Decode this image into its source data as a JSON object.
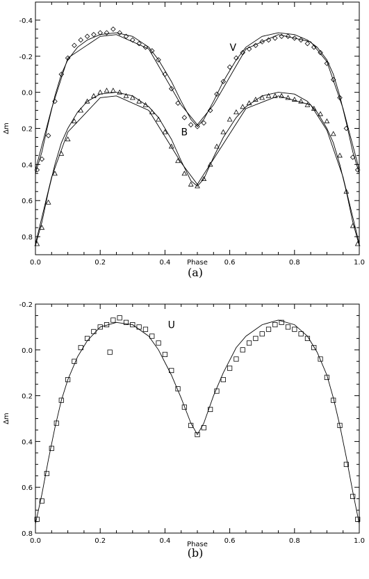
{
  "chart_data": [
    {
      "type": "scatter",
      "panel_label": "(a)",
      "xlabel": "Phase",
      "ylabel": "Δm",
      "xlim": [
        0.0,
        1.0
      ],
      "ylim": [
        0.9,
        -0.5
      ],
      "y_inverted": true,
      "xticks": [
        "0.0",
        "0.2",
        "0.4",
        "0.6",
        "0.8",
        "1.0"
      ],
      "yticks": [
        "-0.4",
        "-0.2",
        "0.0",
        "0.2",
        "0.4",
        "0.6",
        "0.8"
      ],
      "grid": false,
      "series_labels": [
        {
          "text": "V",
          "x": 0.61,
          "y": -0.25
        },
        {
          "text": "B",
          "x": 0.46,
          "y": 0.22
        }
      ],
      "series": [
        {
          "name": "V",
          "marker": "diamond",
          "x": [
            0.005,
            0.02,
            0.04,
            0.06,
            0.08,
            0.1,
            0.12,
            0.14,
            0.16,
            0.18,
            0.2,
            0.22,
            0.24,
            0.26,
            0.28,
            0.3,
            0.32,
            0.34,
            0.36,
            0.38,
            0.4,
            0.42,
            0.44,
            0.46,
            0.48,
            0.5,
            0.52,
            0.54,
            0.56,
            0.58,
            0.6,
            0.62,
            0.64,
            0.66,
            0.68,
            0.7,
            0.72,
            0.74,
            0.76,
            0.78,
            0.8,
            0.82,
            0.84,
            0.86,
            0.88,
            0.9,
            0.92,
            0.94,
            0.96,
            0.98,
            0.995
          ],
          "y": [
            0.43,
            0.37,
            0.24,
            0.05,
            -0.1,
            -0.19,
            -0.26,
            -0.29,
            -0.31,
            -0.32,
            -0.33,
            -0.33,
            -0.35,
            -0.33,
            -0.31,
            -0.29,
            -0.27,
            -0.25,
            -0.23,
            -0.18,
            -0.1,
            -0.02,
            0.06,
            0.14,
            0.18,
            0.19,
            0.17,
            0.1,
            0.01,
            -0.06,
            -0.14,
            -0.19,
            -0.22,
            -0.24,
            -0.26,
            -0.28,
            -0.29,
            -0.3,
            -0.31,
            -0.31,
            -0.3,
            -0.29,
            -0.27,
            -0.25,
            -0.22,
            -0.16,
            -0.07,
            0.03,
            0.2,
            0.36,
            0.43
          ],
          "model_x": [
            0.0,
            0.02,
            0.04,
            0.06,
            0.08,
            0.1,
            0.13,
            0.16,
            0.2,
            0.25,
            0.3,
            0.35,
            0.38,
            0.42,
            0.45,
            0.48,
            0.5,
            0.52,
            0.55,
            0.58,
            0.62,
            0.65,
            0.7,
            0.75,
            0.8,
            0.84,
            0.87,
            0.9,
            0.92,
            0.94,
            0.96,
            0.98,
            1.0
          ],
          "model_y": [
            0.45,
            0.33,
            0.17,
            0.02,
            -0.1,
            -0.18,
            -0.25,
            -0.29,
            -0.32,
            -0.33,
            -0.31,
            -0.25,
            -0.18,
            -0.06,
            0.05,
            0.15,
            0.19,
            0.15,
            0.05,
            -0.06,
            -0.18,
            -0.25,
            -0.31,
            -0.33,
            -0.32,
            -0.29,
            -0.25,
            -0.18,
            -0.1,
            0.02,
            0.17,
            0.33,
            0.45
          ],
          "model2_x": [
            0.0,
            0.05,
            0.1,
            0.2,
            0.25,
            0.35,
            0.45,
            0.5,
            0.55,
            0.65,
            0.75,
            0.85,
            0.9,
            0.95,
            1.0
          ],
          "model2_y": [
            0.43,
            0.09,
            -0.19,
            -0.31,
            -0.32,
            -0.24,
            0.07,
            0.18,
            0.07,
            -0.24,
            -0.32,
            -0.28,
            -0.17,
            0.09,
            0.43
          ]
        },
        {
          "name": "B",
          "marker": "triangle",
          "x": [
            0.005,
            0.02,
            0.04,
            0.06,
            0.08,
            0.1,
            0.12,
            0.14,
            0.16,
            0.18,
            0.2,
            0.22,
            0.24,
            0.26,
            0.28,
            0.3,
            0.32,
            0.34,
            0.36,
            0.38,
            0.4,
            0.42,
            0.44,
            0.46,
            0.48,
            0.5,
            0.52,
            0.54,
            0.56,
            0.58,
            0.6,
            0.62,
            0.64,
            0.66,
            0.68,
            0.7,
            0.72,
            0.74,
            0.76,
            0.78,
            0.8,
            0.82,
            0.84,
            0.86,
            0.88,
            0.9,
            0.92,
            0.94,
            0.96,
            0.98,
            0.995
          ],
          "y": [
            0.84,
            0.75,
            0.61,
            0.45,
            0.34,
            0.26,
            0.16,
            0.1,
            0.05,
            0.02,
            0.0,
            -0.01,
            -0.01,
            0.0,
            0.02,
            0.03,
            0.05,
            0.07,
            0.11,
            0.15,
            0.22,
            0.3,
            0.38,
            0.45,
            0.51,
            0.52,
            0.48,
            0.4,
            0.3,
            0.22,
            0.15,
            0.11,
            0.08,
            0.06,
            0.04,
            0.03,
            0.02,
            0.02,
            0.02,
            0.03,
            0.04,
            0.05,
            0.07,
            0.09,
            0.12,
            0.16,
            0.23,
            0.35,
            0.55,
            0.74,
            0.84
          ],
          "model_x": [
            0.0,
            0.02,
            0.04,
            0.06,
            0.08,
            0.1,
            0.13,
            0.16,
            0.2,
            0.25,
            0.3,
            0.35,
            0.38,
            0.42,
            0.45,
            0.48,
            0.5,
            0.52,
            0.55,
            0.58,
            0.62,
            0.65,
            0.7,
            0.75,
            0.8,
            0.84,
            0.87,
            0.9,
            0.92,
            0.94,
            0.96,
            0.98,
            1.0
          ],
          "model_y": [
            0.85,
            0.72,
            0.55,
            0.4,
            0.28,
            0.2,
            0.11,
            0.05,
            0.01,
            0.0,
            0.02,
            0.08,
            0.14,
            0.26,
            0.38,
            0.49,
            0.52,
            0.48,
            0.36,
            0.25,
            0.14,
            0.08,
            0.02,
            0.0,
            0.01,
            0.05,
            0.11,
            0.2,
            0.28,
            0.4,
            0.55,
            0.72,
            0.85
          ],
          "model2_x": [
            0.0,
            0.05,
            0.1,
            0.2,
            0.25,
            0.35,
            0.45,
            0.5,
            0.55,
            0.65,
            0.75,
            0.85,
            0.9,
            0.95,
            1.0
          ],
          "model2_y": [
            0.84,
            0.47,
            0.22,
            0.03,
            0.02,
            0.1,
            0.39,
            0.51,
            0.37,
            0.09,
            0.02,
            0.07,
            0.21,
            0.47,
            0.84
          ]
        }
      ]
    },
    {
      "type": "scatter",
      "panel_label": "(b)",
      "xlabel": "Phase",
      "ylabel": "Δm",
      "xlim": [
        0.0,
        1.0
      ],
      "ylim": [
        0.8,
        -0.2
      ],
      "y_inverted": true,
      "xticks": [
        "0.0",
        "0.2",
        "0.4",
        "0.6",
        "0.8",
        "1.0"
      ],
      "yticks": [
        "-0.2",
        "0.0",
        "0.2",
        "0.4",
        "0.6",
        "0.8"
      ],
      "grid": false,
      "series_labels": [
        {
          "text": "U",
          "x": 0.42,
          "y": -0.11
        }
      ],
      "series": [
        {
          "name": "U",
          "marker": "square",
          "x": [
            0.005,
            0.02,
            0.035,
            0.05,
            0.065,
            0.08,
            0.1,
            0.12,
            0.14,
            0.16,
            0.18,
            0.2,
            0.22,
            0.23,
            0.24,
            0.26,
            0.28,
            0.3,
            0.32,
            0.34,
            0.36,
            0.38,
            0.4,
            0.42,
            0.44,
            0.46,
            0.48,
            0.5,
            0.52,
            0.54,
            0.56,
            0.58,
            0.6,
            0.62,
            0.64,
            0.66,
            0.68,
            0.7,
            0.72,
            0.74,
            0.76,
            0.78,
            0.8,
            0.82,
            0.84,
            0.86,
            0.88,
            0.9,
            0.92,
            0.94,
            0.96,
            0.98,
            0.995
          ],
          "y": [
            0.74,
            0.66,
            0.54,
            0.43,
            0.32,
            0.22,
            0.13,
            0.05,
            -0.01,
            -0.05,
            -0.08,
            -0.1,
            -0.11,
            0.01,
            -0.13,
            -0.14,
            -0.12,
            -0.11,
            -0.1,
            -0.09,
            -0.06,
            -0.03,
            0.02,
            0.09,
            0.17,
            0.25,
            0.33,
            0.37,
            0.34,
            0.26,
            0.18,
            0.13,
            0.08,
            0.04,
            0.0,
            -0.03,
            -0.05,
            -0.07,
            -0.09,
            -0.11,
            -0.12,
            -0.1,
            -0.09,
            -0.07,
            -0.05,
            -0.01,
            0.04,
            0.12,
            0.22,
            0.33,
            0.5,
            0.64,
            0.74
          ],
          "model_x": [
            0.0,
            0.02,
            0.04,
            0.06,
            0.08,
            0.1,
            0.13,
            0.16,
            0.2,
            0.25,
            0.3,
            0.35,
            0.38,
            0.42,
            0.45,
            0.48,
            0.5,
            0.52,
            0.55,
            0.58,
            0.62,
            0.65,
            0.7,
            0.75,
            0.8,
            0.84,
            0.87,
            0.9,
            0.92,
            0.94,
            0.96,
            0.98,
            1.0
          ],
          "model_y": [
            0.76,
            0.63,
            0.48,
            0.34,
            0.22,
            0.13,
            0.03,
            -0.04,
            -0.1,
            -0.12,
            -0.11,
            -0.06,
            0.0,
            0.11,
            0.21,
            0.32,
            0.37,
            0.32,
            0.2,
            0.1,
            -0.01,
            -0.06,
            -0.11,
            -0.13,
            -0.11,
            -0.06,
            0.01,
            0.11,
            0.21,
            0.33,
            0.47,
            0.62,
            0.76
          ]
        }
      ]
    }
  ]
}
